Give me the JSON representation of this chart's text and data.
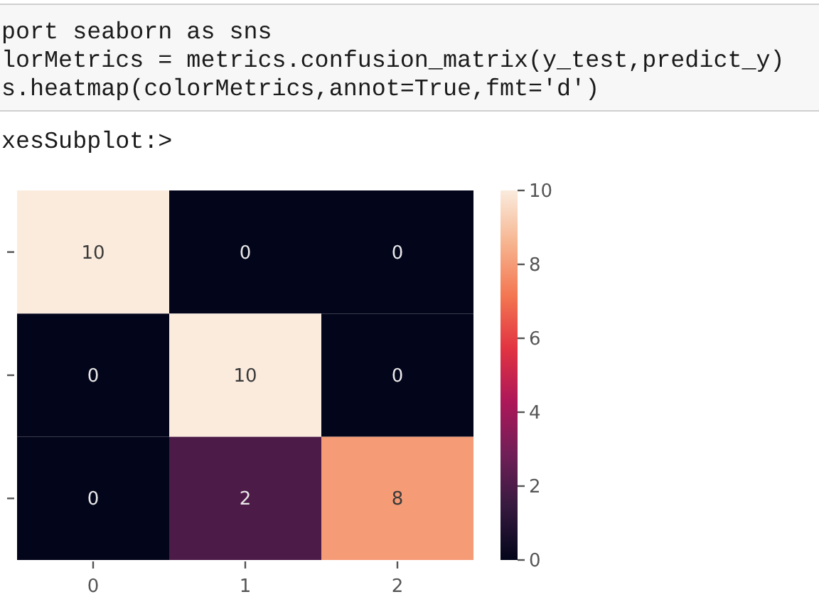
{
  "chart_data": {
    "type": "heatmap",
    "annotations": [
      "port seaborn as sns",
      "lorMetrics = metrics.confusion_matrix(y_test,predict_y)",
      "s.heatmap(colorMetrics,annot=True,fmt='d')",
      "xesSubplot:>"
    ],
    "categories": [
      "0",
      "1",
      "2"
    ],
    "y_categories": [
      null,
      null,
      null
    ],
    "cells": [
      [
        10,
        0,
        0
      ],
      [
        0,
        10,
        0
      ],
      [
        0,
        2,
        8
      ]
    ],
    "clim": [
      0,
      10
    ],
    "cticks": [
      0,
      2,
      4,
      6,
      8,
      10
    ],
    "data_labels": true,
    "tick_labels": "x"
  }
}
